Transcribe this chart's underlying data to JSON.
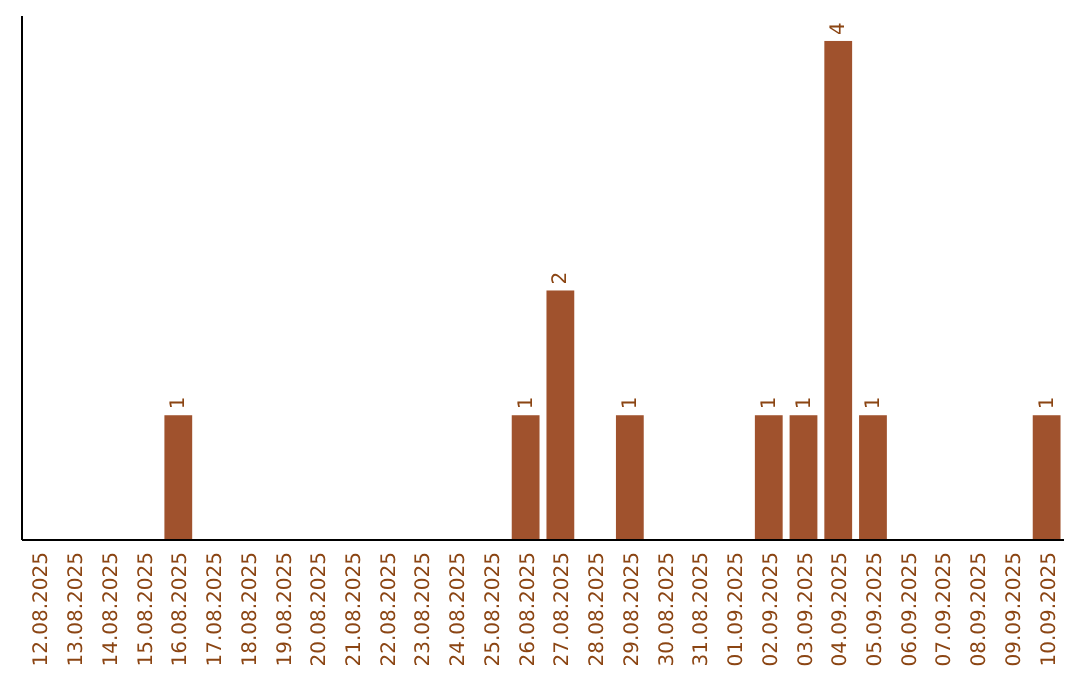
{
  "chart_data": {
    "type": "bar",
    "categories": [
      "12.08.2025",
      "13.08.2025",
      "14.08.2025",
      "15.08.2025",
      "16.08.2025",
      "17.08.2025",
      "18.08.2025",
      "19.08.2025",
      "20.08.2025",
      "21.08.2025",
      "22.08.2025",
      "23.08.2025",
      "24.08.2025",
      "25.08.2025",
      "26.08.2025",
      "27.08.2025",
      "28.08.2025",
      "29.08.2025",
      "30.08.2025",
      "31.08.2025",
      "01.09.2025",
      "02.09.2025",
      "03.09.2025",
      "04.09.2025",
      "05.09.2025",
      "06.09.2025",
      "07.09.2025",
      "08.09.2025",
      "09.09.2025",
      "10.09.2025"
    ],
    "values": [
      0,
      0,
      0,
      0,
      1,
      0,
      0,
      0,
      0,
      0,
      0,
      0,
      0,
      0,
      1,
      2,
      0,
      1,
      0,
      0,
      0,
      1,
      1,
      4,
      1,
      0,
      0,
      0,
      0,
      1
    ],
    "value_labels": [
      null,
      null,
      null,
      null,
      "1",
      null,
      null,
      null,
      null,
      null,
      null,
      null,
      null,
      null,
      "1",
      "2",
      null,
      "1",
      null,
      null,
      null,
      "1",
      "1",
      "4",
      "1",
      null,
      null,
      null,
      null,
      "1"
    ],
    "color": "#a0522d",
    "ylim": [
      0,
      4.2
    ],
    "tick_labels": "x"
  }
}
